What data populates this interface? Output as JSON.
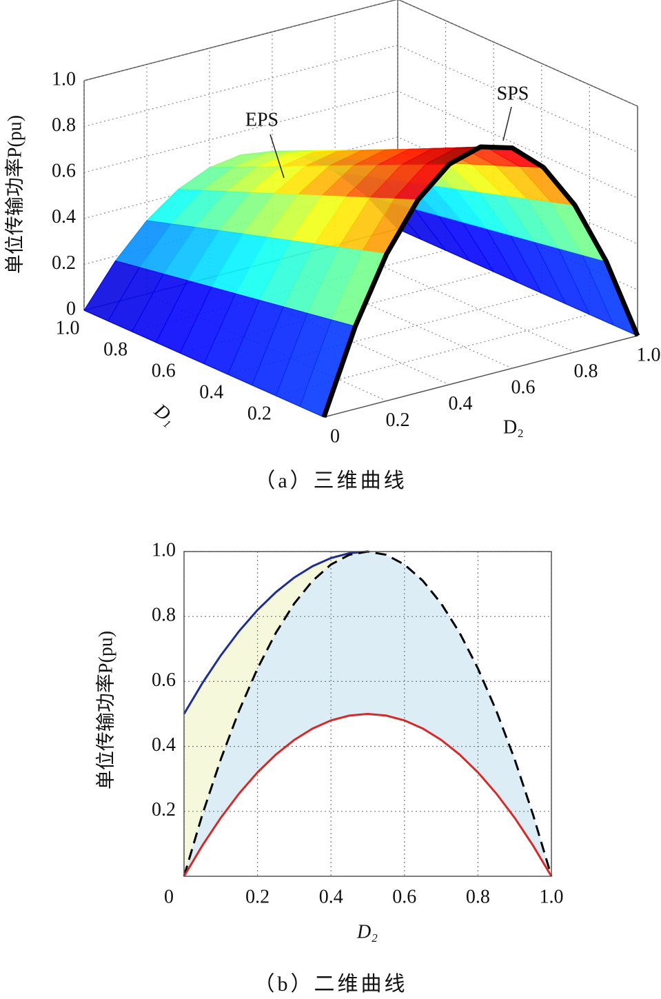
{
  "chart_data": [
    {
      "type": "surface",
      "z_label": "单位传输功率P(pu)",
      "x_label": "D₂",
      "y_label": "D₁",
      "caption": "（a）三维曲线",
      "annotations": [
        {
          "text": "EPS"
        },
        {
          "text": "SPS"
        }
      ],
      "x": [
        0,
        0.1,
        0.2,
        0.3,
        0.4,
        0.5,
        0.6,
        0.7,
        0.8,
        0.9,
        1
      ],
      "y": [
        0,
        0.1,
        0.2,
        0.3,
        0.4,
        0.5,
        0.6,
        0.7,
        0.8,
        0.9,
        1
      ],
      "z": [
        [
          0,
          0.36,
          0.64,
          0.84,
          0.96,
          1,
          0.96,
          0.84,
          0.64,
          0.36,
          0
        ],
        [
          0,
          0.342,
          0.608,
          0.798,
          0.912,
          0.95,
          0.912,
          0.798,
          0.608,
          0.342,
          0
        ],
        [
          0,
          0.324,
          0.576,
          0.756,
          0.864,
          0.9,
          0.864,
          0.756,
          0.576,
          0.324,
          0
        ],
        [
          0,
          0.306,
          0.544,
          0.714,
          0.816,
          0.85,
          0.816,
          0.714,
          0.544,
          0.306,
          0
        ],
        [
          0,
          0.288,
          0.512,
          0.672,
          0.768,
          0.8,
          0.768,
          0.672,
          0.512,
          0.288,
          0
        ],
        [
          0,
          0.27,
          0.48,
          0.63,
          0.72,
          0.75,
          0.72,
          0.63,
          0.48,
          0.27,
          0
        ],
        [
          0,
          0.252,
          0.448,
          0.588,
          0.672,
          0.7,
          0.672,
          0.588,
          0.448,
          0.252,
          0
        ],
        [
          0,
          0.234,
          0.416,
          0.546,
          0.624,
          0.65,
          0.624,
          0.546,
          0.416,
          0.234,
          0
        ],
        [
          0,
          0.216,
          0.384,
          0.504,
          0.576,
          0.6,
          0.576,
          0.504,
          0.384,
          0.216,
          0
        ],
        [
          0,
          0.198,
          0.352,
          0.462,
          0.528,
          0.55,
          0.528,
          0.462,
          0.352,
          0.198,
          0
        ],
        [
          0,
          0.18,
          0.32,
          0.42,
          0.48,
          0.5,
          0.48,
          0.42,
          0.32,
          0.18,
          0
        ]
      ],
      "xlim": [
        0,
        1
      ],
      "ylim": [
        0,
        1
      ],
      "zlim": [
        0,
        1
      ],
      "xticks": [
        0,
        0.2,
        0.4,
        0.6,
        0.8,
        {
          "value": 1,
          "label": "1.0"
        }
      ],
      "yticks": [
        0.2,
        0.4,
        0.6,
        0.8,
        {
          "value": 1,
          "label": "1.0"
        }
      ],
      "zticks": [
        0,
        0.2,
        0.4,
        0.6,
        0.8,
        {
          "value": 1,
          "label": "1.0"
        }
      ],
      "grid": true,
      "colormap": "jet",
      "highlight_color": "#000000"
    },
    {
      "type": "line",
      "y_label": "单位传输功率P(pu)",
      "x_label": "D₂",
      "caption": "（b）二维曲线",
      "x": [
        0,
        0.05,
        0.1,
        0.15,
        0.2,
        0.25,
        0.3,
        0.35,
        0.4,
        0.45,
        0.5,
        0.55,
        0.6,
        0.65,
        0.7,
        0.75,
        0.8,
        0.85,
        0.9,
        0.95,
        1
      ],
      "series": [
        {
          "color": "#1f2f8f",
          "fill": "#f6f8dc",
          "dash": false,
          "values": [
            0.5,
            0.595,
            0.68,
            0.755,
            0.82,
            0.875,
            0.92,
            0.955,
            0.98,
            0.995,
            1,
            null,
            null,
            null,
            null,
            null,
            null,
            null,
            null,
            null,
            null
          ]
        },
        {
          "color": "#000000",
          "fill": "#dcedf6",
          "dash": true,
          "values": [
            0,
            0.19,
            0.36,
            0.51,
            0.64,
            0.75,
            0.84,
            0.91,
            0.96,
            0.99,
            1,
            0.99,
            0.96,
            0.91,
            0.84,
            0.75,
            0.64,
            0.51,
            0.36,
            0.19,
            0
          ]
        },
        {
          "color": "#d42a2a",
          "dash": false,
          "values": [
            0,
            0.095,
            0.18,
            0.255,
            0.32,
            0.375,
            0.42,
            0.455,
            0.48,
            0.495,
            0.5,
            0.495,
            0.48,
            0.455,
            0.42,
            0.375,
            0.32,
            0.255,
            0.18,
            0.095,
            0
          ]
        }
      ],
      "xlim": [
        0,
        1
      ],
      "ylim": [
        0,
        1
      ],
      "xticks": [
        0,
        0.2,
        0.4,
        0.6,
        0.8,
        {
          "value": 1,
          "label": "1.0"
        }
      ],
      "yticks": [
        0.2,
        0.4,
        0.6,
        0.8,
        {
          "value": 1,
          "label": "1.0"
        }
      ],
      "grid": true
    }
  ]
}
